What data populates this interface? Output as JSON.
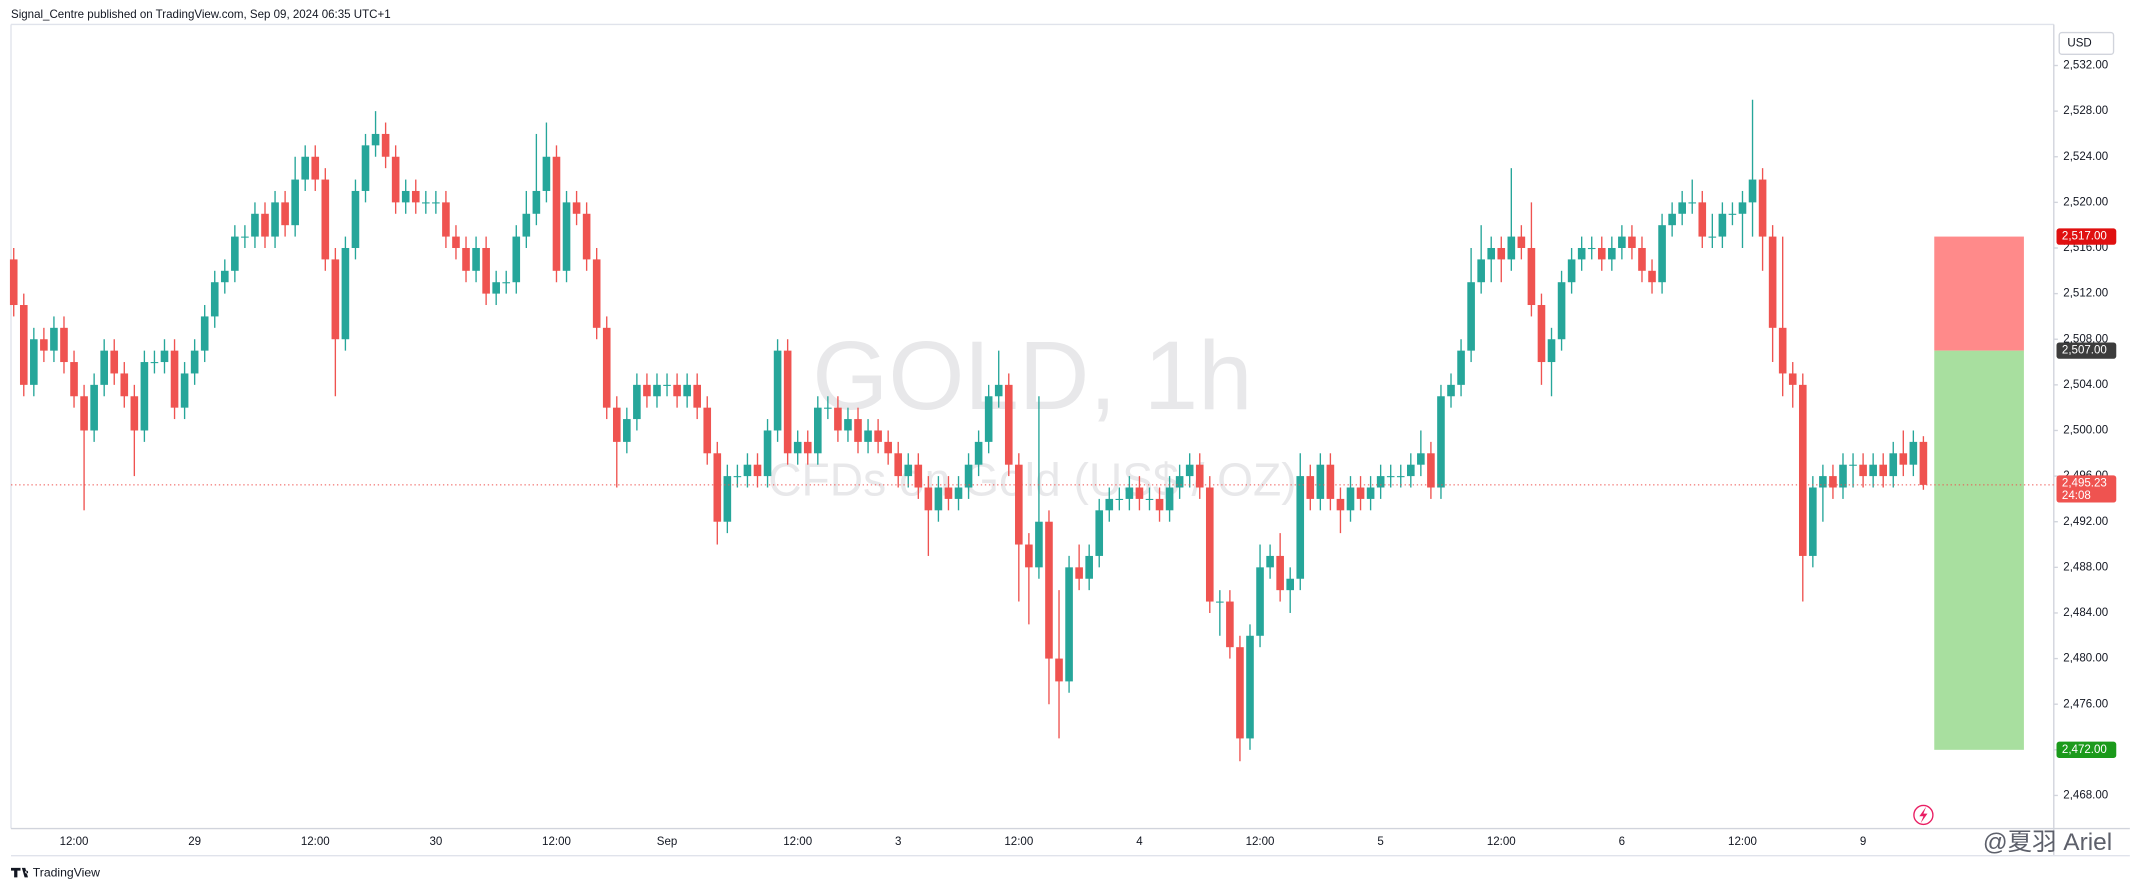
{
  "header": "Signal_Centre published on TradingView.com, Sep 09, 2024 06:35 UTC+1",
  "footer": "TradingView",
  "watermark": "@夏羽 Ariel",
  "chart_data": {
    "type": "candlestick",
    "title": "GOLD, 1h",
    "subtitle": "CFDs on Gold (US$ / OZ)",
    "currency": "USD",
    "up_color": "#26a69a",
    "down_color": "#ef5350",
    "grid": false,
    "categories": [
      null,
      null,
      null,
      null,
      null,
      null,
      "12:00",
      null,
      null,
      null,
      null,
      null,
      null,
      null,
      null,
      null,
      null,
      null,
      "29",
      null,
      null,
      null,
      null,
      null,
      null,
      null,
      null,
      null,
      null,
      null,
      "12:00",
      null,
      null,
      null,
      null,
      null,
      null,
      null,
      null,
      null,
      null,
      null,
      "30",
      null,
      null,
      null,
      null,
      null,
      null,
      null,
      null,
      null,
      null,
      null,
      "12:00",
      null,
      null,
      null,
      null,
      null,
      null,
      null,
      null,
      null,
      null,
      "Sep",
      null,
      null,
      null,
      null,
      null,
      null,
      null,
      null,
      null,
      null,
      null,
      null,
      "12:00",
      null,
      null,
      null,
      null,
      null,
      null,
      null,
      null,
      null,
      "3",
      null,
      null,
      null,
      null,
      null,
      null,
      null,
      null,
      null,
      null,
      null,
      "12:00",
      null,
      null,
      null,
      null,
      null,
      null,
      null,
      null,
      null,
      null,
      null,
      "4",
      null,
      null,
      null,
      null,
      null,
      null,
      null,
      null,
      null,
      null,
      null,
      "12:00",
      null,
      null,
      null,
      null,
      null,
      null,
      null,
      null,
      null,
      null,
      null,
      "5",
      null,
      null,
      null,
      null,
      null,
      null,
      null,
      null,
      null,
      null,
      null,
      "12:00",
      null,
      null,
      null,
      null,
      null,
      null,
      null,
      null,
      null,
      null,
      null,
      "6",
      null,
      null,
      null,
      null,
      null,
      null,
      null,
      null,
      null,
      null,
      null,
      "12:00",
      null,
      null,
      null,
      null,
      null,
      null,
      null,
      null,
      null,
      null,
      null,
      "9",
      null,
      null,
      null,
      null,
      null,
      null
    ],
    "open": [
      2515,
      2511,
      2504,
      2508,
      2507,
      2509,
      2506,
      2503,
      2500,
      2504,
      2507,
      2505,
      2503,
      2500,
      2506,
      2506,
      2507,
      2502,
      2505,
      2507,
      2510,
      2513,
      2514,
      2517,
      2517,
      2519,
      2517,
      2520,
      2518,
      2522,
      2524,
      2522,
      2515,
      2508,
      2516,
      2521,
      2525,
      2526,
      2524,
      2520,
      2521,
      2520,
      2520,
      2520,
      2517,
      2516,
      2514,
      2516,
      2512,
      2513,
      2513,
      2517,
      2519,
      2521,
      2524,
      2514,
      2520,
      2519,
      2515,
      2509,
      2502,
      2499,
      2501,
      2504,
      2503,
      2504,
      2504,
      2503,
      2504,
      2502,
      2498,
      2492,
      2496,
      2496,
      2497,
      2496,
      2500,
      2507,
      2498,
      2499,
      2498,
      2502,
      2502,
      2500,
      2501,
      2499,
      2500,
      2499,
      2498,
      2496,
      2497,
      2495,
      2493,
      2495,
      2494,
      2495,
      2497,
      2499,
      2503,
      2504,
      2497,
      2490,
      2488,
      2492,
      2480,
      2478,
      2488,
      2487,
      2489,
      2493,
      2494,
      2494,
      2495,
      2494,
      2494,
      2493,
      2495,
      2496,
      2497,
      2495,
      2485,
      2485,
      2481,
      2473,
      2482,
      2488,
      2489,
      2486,
      2487,
      2496,
      2494,
      2497,
      2494,
      2493,
      2495,
      2494,
      2495,
      2496,
      2496,
      2496,
      2497,
      2498,
      2495,
      2503,
      2504,
      2507,
      2513,
      2515,
      2516,
      2515,
      2517,
      2516,
      2511,
      2506,
      2508,
      2513,
      2515,
      2516,
      2516,
      2515,
      2516,
      2517,
      2516,
      2514,
      2513,
      2518,
      2519,
      2520,
      2520,
      2517,
      2517,
      2519,
      2519,
      2520,
      2522,
      2517,
      2509,
      2505,
      2504,
      2489,
      2495,
      2496,
      2495,
      2497,
      2497,
      2496,
      2497,
      2496,
      2498,
      2497,
      2499
    ],
    "high": [
      2516,
      2512,
      2509,
      2509,
      2510,
      2510,
      2507,
      2504,
      2505,
      2508,
      2508,
      2506,
      2504,
      2507,
      2507,
      2508,
      2508,
      2506,
      2508,
      2511,
      2514,
      2515,
      2518,
      2518,
      2520,
      2520,
      2521,
      2521,
      2524,
      2525,
      2525,
      2523,
      2516,
      2517,
      2522,
      2526,
      2528,
      2527,
      2525,
      2522,
      2522,
      2521,
      2521,
      2521,
      2518,
      2517,
      2517,
      2517,
      2514,
      2514,
      2518,
      2521,
      2526,
      2527,
      2525,
      2521,
      2521,
      2520,
      2516,
      2510,
      2503,
      2502,
      2505,
      2505,
      2505,
      2505,
      2505,
      2505,
      2505,
      2503,
      2499,
      2497,
      2497,
      2498,
      2498,
      2501,
      2508,
      2508,
      2500,
      2500,
      2503,
      2503,
      2503,
      2502,
      2502,
      2501,
      2501,
      2500,
      2499,
      2498,
      2498,
      2496,
      2496,
      2496,
      2496,
      2498,
      2500,
      2504,
      2507,
      2505,
      2498,
      2491,
      2503,
      2493,
      2486,
      2489,
      2490,
      2490,
      2494,
      2495,
      2495,
      2496,
      2496,
      2495,
      2495,
      2496,
      2497,
      2498,
      2498,
      2496,
      2486,
      2486,
      2482,
      2483,
      2490,
      2490,
      2491,
      2488,
      2498,
      2497,
      2498,
      2498,
      2495,
      2496,
      2496,
      2496,
      2497,
      2497,
      2497,
      2498,
      2500,
      2499,
      2504,
      2505,
      2508,
      2516,
      2518,
      2517,
      2517,
      2523,
      2518,
      2520,
      2512,
      2509,
      2514,
      2516,
      2517,
      2517,
      2517,
      2517,
      2518,
      2518,
      2517,
      2515,
      2519,
      2520,
      2521,
      2522,
      2521,
      2519,
      2520,
      2520,
      2521,
      2529,
      2523,
      2518,
      2517,
      2506,
      2505,
      2496,
      2497,
      2497,
      2498,
      2498,
      2498,
      2498,
      2498,
      2499,
      2500,
      2500,
      2499.5
    ],
    "low": [
      2510,
      2503,
      2503,
      2506,
      2506,
      2505,
      2502,
      2493,
      2499,
      2503,
      2504,
      2502,
      2496,
      2499,
      2505,
      2505,
      2501,
      2501,
      2504,
      2506,
      2509,
      2512,
      2513,
      2516,
      2516,
      2516,
      2516,
      2517,
      2517,
      2521,
      2521,
      2514,
      2503,
      2507,
      2515,
      2520,
      2524,
      2523,
      2519,
      2519,
      2519,
      2519,
      2519,
      2516,
      2515,
      2513,
      2513,
      2511,
      2511,
      2512,
      2512,
      2516,
      2518,
      2520,
      2513,
      2513,
      2518,
      2514,
      2508,
      2501,
      2495,
      2498,
      2500,
      2502,
      2502,
      2503,
      2502,
      2502,
      2501,
      2497,
      2490,
      2491,
      2495,
      2495,
      2495,
      2495,
      2499,
      2497,
      2497,
      2497,
      2497,
      2501,
      2499,
      2499,
      2498,
      2498,
      2498,
      2497,
      2495,
      2495,
      2494,
      2489,
      2492,
      2493,
      2493,
      2494,
      2496,
      2498,
      2502,
      2496,
      2485,
      2483,
      2487,
      2476,
      2473,
      2477,
      2486,
      2486,
      2488,
      2492,
      2493,
      2493,
      2493,
      2493,
      2492,
      2492,
      2494,
      2495,
      2494,
      2484,
      2482,
      2480,
      2471,
      2472,
      2481,
      2487,
      2485,
      2484,
      2486,
      2493,
      2493,
      2493,
      2491,
      2492,
      2493,
      2493,
      2494,
      2495,
      2495,
      2495,
      2496,
      2494,
      2494,
      2502,
      2503,
      2506,
      2512,
      2513,
      2513,
      2514,
      2515,
      2510,
      2504,
      2503,
      2507,
      2512,
      2514,
      2515,
      2514,
      2514,
      2515,
      2515,
      2513,
      2512,
      2512,
      2517,
      2518,
      2519,
      2516,
      2516,
      2516,
      2518,
      2516,
      2517,
      2514,
      2506,
      2503,
      2502,
      2485,
      2488,
      2492,
      2494,
      2494,
      2495,
      2495,
      2495,
      2495,
      2495,
      2496,
      2496,
      2494.8
    ],
    "close": [
      2511,
      2504,
      2508,
      2507,
      2509,
      2506,
      2503,
      2500,
      2504,
      2507,
      2505,
      2503,
      2500,
      2506,
      2506,
      2507,
      2502,
      2505,
      2507,
      2510,
      2513,
      2514,
      2517,
      2517,
      2519,
      2517,
      2520,
      2518,
      2522,
      2524,
      2522,
      2515,
      2508,
      2516,
      2521,
      2525,
      2526,
      2524,
      2520,
      2521,
      2520,
      2520,
      2520,
      2517,
      2516,
      2514,
      2516,
      2512,
      2513,
      2513,
      2517,
      2519,
      2521,
      2524,
      2514,
      2520,
      2519,
      2515,
      2509,
      2502,
      2499,
      2501,
      2504,
      2503,
      2504,
      2504,
      2503,
      2504,
      2502,
      2498,
      2492,
      2496,
      2496,
      2497,
      2496,
      2500,
      2507,
      2498,
      2499,
      2498,
      2502,
      2502,
      2500,
      2501,
      2499,
      2500,
      2499,
      2498,
      2496,
      2497,
      2495,
      2493,
      2495,
      2494,
      2495,
      2497,
      2499,
      2503,
      2504,
      2497,
      2490,
      2488,
      2492,
      2480,
      2478,
      2488,
      2487,
      2489,
      2493,
      2494,
      2494,
      2495,
      2494,
      2494,
      2493,
      2495,
      2496,
      2497,
      2495,
      2485,
      2485,
      2481,
      2473,
      2482,
      2488,
      2489,
      2486,
      2487,
      2496,
      2494,
      2497,
      2494,
      2493,
      2495,
      2494,
      2495,
      2496,
      2496,
      2496,
      2497,
      2498,
      2495,
      2503,
      2504,
      2507,
      2513,
      2515,
      2516,
      2515,
      2517,
      2516,
      2511,
      2506,
      2508,
      2513,
      2515,
      2516,
      2516,
      2515,
      2516,
      2517,
      2516,
      2514,
      2513,
      2518,
      2519,
      2520,
      2520,
      2517,
      2517,
      2519,
      2519,
      2520,
      2522,
      2517,
      2509,
      2505,
      2504,
      2489,
      2495,
      2496,
      2495,
      2497,
      2497,
      2496,
      2497,
      2496,
      2498,
      2497,
      2499,
      2495.23
    ],
    "last_price_label": "2,495.23",
    "countdown": "24:08",
    "ylim": [
      2465.1,
      2535.6
    ],
    "yticks": [
      {
        "value": 2468,
        "label": "2,468.00"
      },
      {
        "value": 2472,
        "label": "2,472.00"
      },
      {
        "value": 2476,
        "label": "2,476.00"
      },
      {
        "value": 2480,
        "label": "2,480.00"
      },
      {
        "value": 2484,
        "label": "2,484.00"
      },
      {
        "value": 2488,
        "label": "2,488.00"
      },
      {
        "value": 2492,
        "label": "2,492.00"
      },
      {
        "value": 2496,
        "label": "2,496.00"
      },
      {
        "value": 2500,
        "label": "2,500.00"
      },
      {
        "value": 2504,
        "label": "2,504.00"
      },
      {
        "value": 2508,
        "label": "2,508.00"
      },
      {
        "value": 2512,
        "label": "2,512.00"
      },
      {
        "value": 2516,
        "label": "2,516.00"
      },
      {
        "value": 2520,
        "label": "2,520.00"
      },
      {
        "value": 2524,
        "label": "2,524.00"
      },
      {
        "value": 2528,
        "label": "2,528.00"
      },
      {
        "value": 2532,
        "label": "2,532.00"
      }
    ],
    "position": {
      "stop": {
        "value": 2517,
        "label": "2,517.00",
        "color": "#e01010",
        "zone_color": "#ff8a8a"
      },
      "entry": {
        "value": 2507,
        "label": "2,507.00",
        "color": "#3c3c3c"
      },
      "target": {
        "value": 2472,
        "label": "2,472.00",
        "color": "#1b9a1b",
        "zone_color": "#a8df9f"
      }
    }
  }
}
